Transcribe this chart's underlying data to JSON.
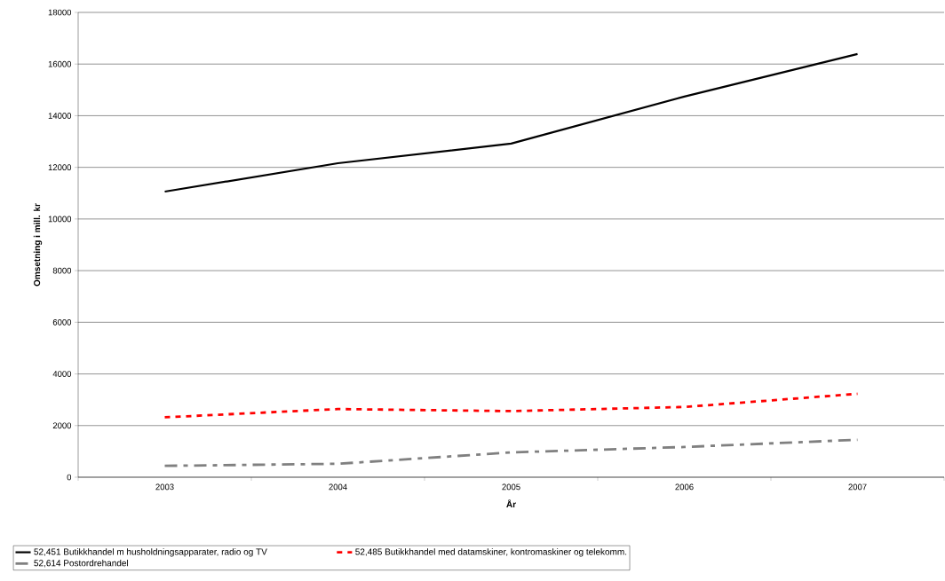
{
  "chart_data": {
    "type": "line",
    "xlabel": "År",
    "ylabel": "Omsetning i mill. kr",
    "categories": [
      "2003",
      "2004",
      "2005",
      "2006",
      "2007"
    ],
    "series": [
      {
        "name": "52,451 Butikkhandel m husholdningsapparater, radio og TV",
        "color": "#000000",
        "line_style": "solid",
        "values": [
          11060,
          12160,
          12920,
          14740,
          16390
        ]
      },
      {
        "name": "52,485 Butikkhandel med datamskiner, kontromaskiner og telekomm.",
        "color": "#ff0000",
        "line_style": "dotted",
        "values": [
          2320,
          2640,
          2560,
          2720,
          3230
        ]
      },
      {
        "name": "52,614 Postordrehandel",
        "color": "#808080",
        "line_style": "dashed",
        "values": [
          440,
          520,
          960,
          1170,
          1450
        ]
      }
    ],
    "ylim": [
      0,
      18000
    ],
    "yticks": [
      0,
      2000,
      4000,
      6000,
      8000,
      10000,
      12000,
      14000,
      16000,
      18000
    ],
    "grid": "y",
    "legend": "bottom",
    "marker": "none"
  }
}
